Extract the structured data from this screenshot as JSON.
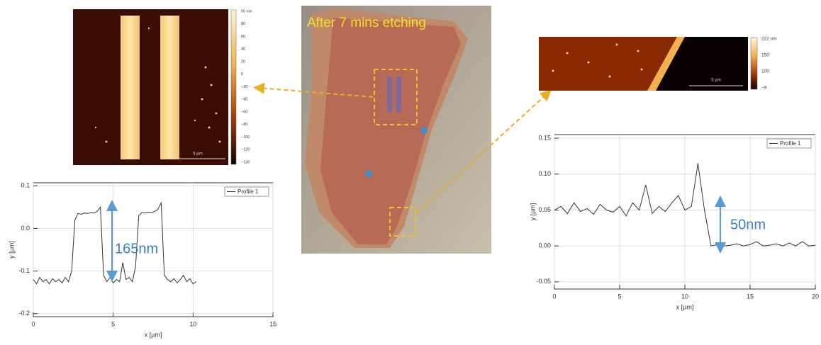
{
  "optical_image": {
    "caption": "After 7 mins etching"
  },
  "afm_left": {
    "colorbar_labels": [
      "55 nm",
      "80",
      "60",
      "40",
      "20",
      "0",
      "−20",
      "−40",
      "−60",
      "−80",
      "−100",
      "−120",
      "−130"
    ],
    "scale_bar": "5 µm"
  },
  "afm_right": {
    "colorbar_labels": [
      "222 nm",
      "150",
      "100",
      "−9"
    ],
    "scale_bar": "5 µm"
  },
  "chart_data": [
    {
      "type": "line",
      "xlabel": "x [µm]",
      "ylabel": "y [µm]",
      "annotation": "165nm",
      "legend": "upper right",
      "xlim": [
        0,
        15
      ],
      "xticks": [
        0,
        5,
        10,
        15
      ],
      "ylim": [
        -0.207,
        0.107
      ],
      "yticks": [
        {
          "value": -0.2,
          "label": "-0.2"
        },
        {
          "value": -0.1,
          "label": "-0.1"
        },
        {
          "value": 0,
          "label": "0.0"
        },
        {
          "value": 0.1,
          "label": "0.1"
        }
      ],
      "x": [
        0,
        0.2,
        0.4,
        0.6,
        0.8,
        1.0,
        1.2,
        1.4,
        1.6,
        1.8,
        2.0,
        2.2,
        2.4,
        2.6,
        2.8,
        3.0,
        3.2,
        3.4,
        3.6,
        3.8,
        4.0,
        4.2,
        4.4,
        4.6,
        4.8,
        5.0,
        5.2,
        5.4,
        5.6,
        5.8,
        6.0,
        6.2,
        6.4,
        6.6,
        6.8,
        7.0,
        7.2,
        7.4,
        7.6,
        7.8,
        8.0,
        8.2,
        8.4,
        8.6,
        8.8,
        9.0,
        9.2,
        9.4,
        9.6,
        9.8,
        10.0,
        10.2
      ],
      "series": [
        {
          "name": "Profile 1",
          "color": "#333333",
          "values": [
            -0.12,
            -0.13,
            -0.115,
            -0.125,
            -0.12,
            -0.13,
            -0.118,
            -0.125,
            -0.12,
            -0.128,
            -0.115,
            -0.125,
            -0.1,
            0.02,
            0.035,
            0.033,
            0.036,
            0.035,
            0.037,
            0.036,
            0.04,
            0.05,
            -0.11,
            -0.125,
            -0.115,
            -0.128,
            -0.12,
            -0.125,
            -0.08,
            -0.12,
            -0.115,
            -0.125,
            -0.09,
            0.03,
            0.037,
            0.036,
            0.038,
            0.037,
            0.04,
            0.045,
            0.06,
            -0.11,
            -0.12,
            -0.125,
            -0.118,
            -0.128,
            -0.12,
            -0.11,
            -0.125,
            -0.118,
            -0.13,
            -0.125
          ]
        }
      ]
    },
    {
      "type": "line",
      "xlabel": "x [µm]",
      "ylabel": "y [µm]",
      "annotation": "50nm",
      "legend": "upper right",
      "xlim": [
        0,
        20
      ],
      "xticks": [
        0,
        5,
        10,
        15,
        20
      ],
      "ylim": [
        -0.06,
        0.155
      ],
      "yticks": [
        -0.05,
        {
          "value": 0,
          "label": "0.00"
        },
        0.05,
        {
          "value": 0.1,
          "label": "0.10"
        },
        0.15
      ],
      "x": [
        0,
        0.5,
        1,
        1.5,
        2,
        2.5,
        3,
        3.5,
        4,
        4.5,
        5,
        5.5,
        6,
        6.5,
        7,
        7.5,
        8,
        8.5,
        9,
        9.5,
        10,
        10.5,
        11,
        11.5,
        12,
        12.5,
        13,
        13.5,
        14,
        14.5,
        15,
        15.5,
        16,
        16.5,
        17,
        17.5,
        18,
        18.5,
        19,
        19.5,
        20
      ],
      "series": [
        {
          "name": "Profile 1",
          "color": "#333333",
          "values": [
            0.05,
            0.055,
            0.045,
            0.06,
            0.048,
            0.052,
            0.044,
            0.058,
            0.05,
            0.047,
            0.055,
            0.042,
            0.06,
            0.05,
            0.085,
            0.045,
            0.055,
            0.048,
            0.06,
            0.07,
            0.05,
            0.055,
            0.115,
            0.05,
            0.0,
            0.002,
            0.0,
            0.001,
            0.003,
            0.0,
            0.002,
            0.006,
            0.0,
            0.001,
            0.003,
            0.0,
            0.004,
            0.0,
            0.006,
            0.0,
            0.001
          ]
        }
      ]
    }
  ]
}
